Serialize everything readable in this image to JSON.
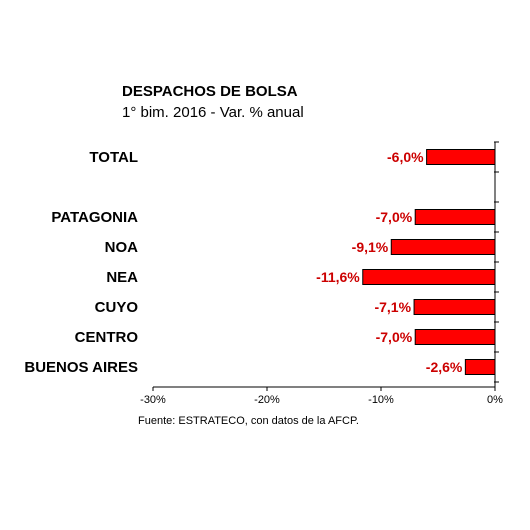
{
  "chart_data": {
    "type": "bar",
    "orientation": "horizontal",
    "title": "DESPACHOS DE BOLSA",
    "subtitle": "1° bim. 2016 - Var. % anual",
    "categories": [
      "TOTAL",
      "",
      "PATAGONIA",
      "NOA",
      "NEA",
      "CUYO",
      "CENTRO",
      "BUENOS AIRES"
    ],
    "values": [
      -6.0,
      null,
      -7.0,
      -9.1,
      -11.6,
      -7.1,
      -7.0,
      -2.6
    ],
    "value_labels": [
      "-6,0%",
      "",
      "-7,0%",
      "-9,1%",
      "-11,6%",
      "-7,1%",
      "-7,0%",
      "-2,6%"
    ],
    "xlim": [
      -30,
      0
    ],
    "x_ticks": [
      -30,
      -20,
      -10,
      0
    ],
    "x_tick_labels": [
      "-30%",
      "-20%",
      "-10%",
      "0%"
    ],
    "xlabel": "",
    "ylabel": "",
    "grid": false,
    "bar_color": "#ff0000",
    "label_color": "#cc0000",
    "source": "Fuente: ESTRATECO, con datos de la AFCP."
  }
}
